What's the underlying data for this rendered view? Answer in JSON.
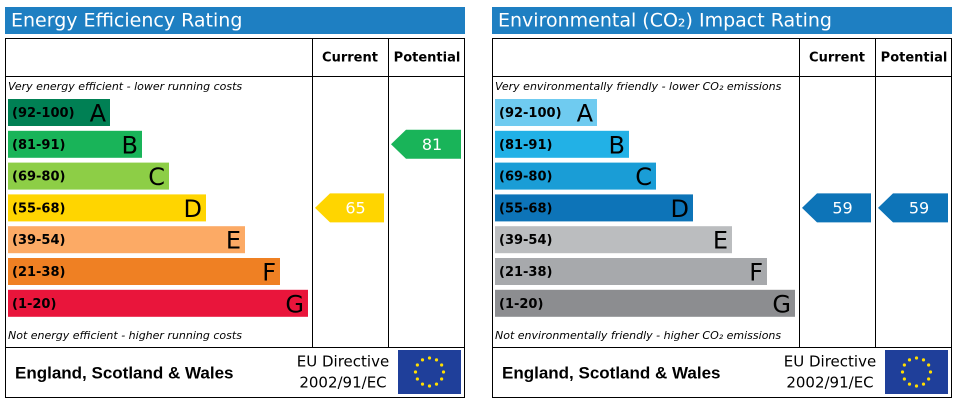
{
  "panels": [
    {
      "title": "Energy Efficiency Rating",
      "current_header": "Current",
      "potential_header": "Potential",
      "top_note": "Very energy efficient - lower running costs",
      "bottom_note": "Not energy efficient - higher running costs",
      "bands": [
        {
          "range": "(92-100)",
          "letter": "A",
          "color": "#008054"
        },
        {
          "range": "(81-91)",
          "letter": "B",
          "color": "#19b459"
        },
        {
          "range": "(69-80)",
          "letter": "C",
          "color": "#8dce46"
        },
        {
          "range": "(55-68)",
          "letter": "D",
          "color": "#ffd500"
        },
        {
          "range": "(39-54)",
          "letter": "E",
          "color": "#fcaa65"
        },
        {
          "range": "(21-38)",
          "letter": "F",
          "color": "#ef8023"
        },
        {
          "range": "(1-20)",
          "letter": "G",
          "color": "#e9153b"
        }
      ],
      "current": 65,
      "potential": 81,
      "region": "England, Scotland & Wales",
      "directive_line1": "EU Directive",
      "directive_line2": "2002/91/EC"
    },
    {
      "title": "Environmental (CO₂) Impact Rating",
      "current_header": "Current",
      "potential_header": "Potential",
      "top_note": "Very environmentally friendly - lower CO₂ emissions",
      "bottom_note": "Not environmentally friendly - higher CO₂ emissions",
      "bands": [
        {
          "range": "(92-100)",
          "letter": "A",
          "color": "#6fcbf0"
        },
        {
          "range": "(81-91)",
          "letter": "B",
          "color": "#22b1e6"
        },
        {
          "range": "(69-80)",
          "letter": "C",
          "color": "#1a9dd6"
        },
        {
          "range": "(55-68)",
          "letter": "D",
          "color": "#0d74b8"
        },
        {
          "range": "(39-54)",
          "letter": "E",
          "color": "#bbbdbf"
        },
        {
          "range": "(21-38)",
          "letter": "F",
          "color": "#a7a9ac"
        },
        {
          "range": "(1-20)",
          "letter": "G",
          "color": "#8c8d90"
        }
      ],
      "current": 59,
      "potential": 59,
      "region": "England, Scotland & Wales",
      "directive_line1": "EU Directive",
      "directive_line2": "2002/91/EC"
    }
  ]
}
